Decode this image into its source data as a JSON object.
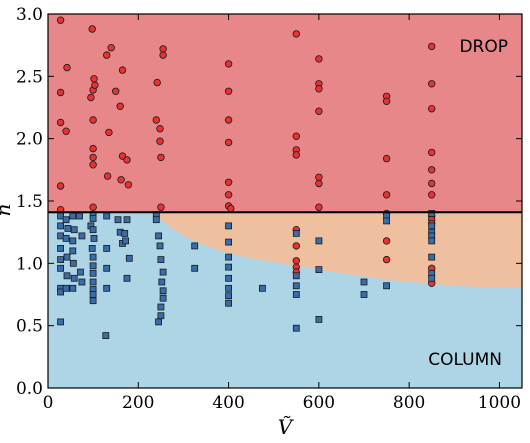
{
  "chart_data": {
    "type": "scatter",
    "title": "",
    "xlabel": "Ṽ",
    "ylabel": "n",
    "xlim": [
      0,
      1050
    ],
    "ylim": [
      0.0,
      3.0
    ],
    "xticks": [
      "0",
      "200",
      "400",
      "600",
      "800",
      "1000"
    ],
    "yticks": [
      "0.0",
      "0.5",
      "1.0",
      "1.5",
      "2.0",
      "2.5",
      "3.0"
    ],
    "xtick_values": [
      0,
      200,
      400,
      600,
      800,
      1000
    ],
    "ytick_values": [
      0.0,
      0.5,
      1.0,
      1.5,
      2.0,
      2.5,
      3.0
    ],
    "threshold_n": 1.41,
    "region_labels": {
      "drop": "DROP",
      "column": "COLUMN"
    },
    "colors": {
      "drop_region": "#e8878a",
      "column_region": "#aed5e6",
      "transition_region": "#eec0a0",
      "drop_marker": "#e83232",
      "column_marker": "#3a6da8",
      "threshold_line": "#000000"
    },
    "boundary_curve": {
      "x": [
        230,
        260,
        300,
        350,
        400,
        450,
        500,
        550,
        600,
        650,
        700,
        750,
        800,
        850,
        900,
        950,
        1000,
        1050
      ],
      "y": [
        1.41,
        1.32,
        1.22,
        1.14,
        1.08,
        1.04,
        1.01,
        0.98,
        0.95,
        0.92,
        0.895,
        0.87,
        0.85,
        0.835,
        0.82,
        0.81,
        0.805,
        0.8
      ]
    },
    "series": [
      {
        "marker": "circle",
        "points": [
          [
            28,
            2.95
          ],
          [
            28,
            2.37
          ],
          [
            28,
            2.13
          ],
          [
            28,
            1.62
          ],
          [
            28,
            1.43
          ],
          [
            40,
            2.06
          ],
          [
            42,
            2.57
          ],
          [
            98,
            2.88
          ],
          [
            100,
            2.39
          ],
          [
            95,
            2.33
          ],
          [
            104,
            2.43
          ],
          [
            102,
            2.48
          ],
          [
            100,
            2.15
          ],
          [
            100,
            1.92
          ],
          [
            100,
            1.85
          ],
          [
            100,
            1.79
          ],
          [
            100,
            1.45
          ],
          [
            130,
            2.67
          ],
          [
            140,
            2.73
          ],
          [
            135,
            2.05
          ],
          [
            132,
            1.7
          ],
          [
            150,
            2.38
          ],
          [
            165,
            2.55
          ],
          [
            160,
            2.26
          ],
          [
            165,
            1.86
          ],
          [
            175,
            1.83
          ],
          [
            162,
            1.67
          ],
          [
            178,
            1.63
          ],
          [
            242,
            2.45
          ],
          [
            240,
            2.15
          ],
          [
            248,
            2.08
          ],
          [
            248,
            1.98
          ],
          [
            250,
            1.85
          ],
          [
            250,
            1.45
          ],
          [
            255,
            2.72
          ],
          [
            255,
            2.67
          ],
          [
            400,
            2.6
          ],
          [
            400,
            2.38
          ],
          [
            400,
            2.15
          ],
          [
            400,
            1.97
          ],
          [
            400,
            1.65
          ],
          [
            400,
            1.55
          ],
          [
            400,
            1.46
          ],
          [
            405,
            1.44
          ],
          [
            550,
            2.84
          ],
          [
            550,
            2.02
          ],
          [
            550,
            1.91
          ],
          [
            550,
            1.87
          ],
          [
            550,
            1.27
          ],
          [
            550,
            1.14
          ],
          [
            550,
            1.02
          ],
          [
            550,
            0.97
          ],
          [
            550,
            0.93
          ],
          [
            600,
            2.64
          ],
          [
            600,
            2.44
          ],
          [
            600,
            2.4
          ],
          [
            600,
            2.22
          ],
          [
            600,
            1.69
          ],
          [
            600,
            1.64
          ],
          [
            600,
            1.45
          ],
          [
            750,
            2.34
          ],
          [
            750,
            2.3
          ],
          [
            750,
            1.84
          ],
          [
            750,
            1.55
          ],
          [
            750,
            1.4
          ],
          [
            750,
            1.18
          ],
          [
            750,
            1.03
          ],
          [
            850,
            2.74
          ],
          [
            850,
            2.44
          ],
          [
            850,
            2.24
          ],
          [
            850,
            1.89
          ],
          [
            850,
            1.75
          ],
          [
            850,
            1.64
          ],
          [
            850,
            1.55
          ],
          [
            850,
            1.38
          ],
          [
            850,
            1.35
          ],
          [
            850,
            1.32
          ],
          [
            850,
            0.96
          ],
          [
            850,
            0.84
          ]
        ]
      },
      {
        "marker": "square",
        "points": [
          [
            28,
            1.38
          ],
          [
            28,
            1.3
          ],
          [
            28,
            1.22
          ],
          [
            28,
            1.12
          ],
          [
            28,
            1.03
          ],
          [
            28,
            0.96
          ],
          [
            28,
            0.8
          ],
          [
            28,
            0.77
          ],
          [
            28,
            0.53
          ],
          [
            40,
            1.35
          ],
          [
            44,
            1.28
          ],
          [
            40,
            1.2
          ],
          [
            42,
            1.05
          ],
          [
            42,
            0.9
          ],
          [
            40,
            0.8
          ],
          [
            55,
            1.38
          ],
          [
            58,
            1.27
          ],
          [
            55,
            1.18
          ],
          [
            55,
            1.1
          ],
          [
            56,
            1.0
          ],
          [
            58,
            0.88
          ],
          [
            55,
            0.8
          ],
          [
            70,
            1.38
          ],
          [
            75,
            1.22
          ],
          [
            72,
            0.93
          ],
          [
            75,
            0.85
          ],
          [
            100,
            1.39
          ],
          [
            100,
            1.36
          ],
          [
            95,
            1.3
          ],
          [
            100,
            1.27
          ],
          [
            102,
            1.2
          ],
          [
            98,
            1.12
          ],
          [
            100,
            1.05
          ],
          [
            100,
            0.98
          ],
          [
            100,
            0.92
          ],
          [
            100,
            0.85
          ],
          [
            100,
            0.79
          ],
          [
            100,
            0.75
          ],
          [
            100,
            0.7
          ],
          [
            130,
            1.38
          ],
          [
            130,
            1.12
          ],
          [
            130,
            0.96
          ],
          [
            130,
            0.8
          ],
          [
            128,
            0.42
          ],
          [
            155,
            1.35
          ],
          [
            160,
            1.25
          ],
          [
            165,
            1.16
          ],
          [
            170,
            1.24
          ],
          [
            172,
            1.18
          ],
          [
            175,
            1.35
          ],
          [
            180,
            1.04
          ],
          [
            175,
            0.88
          ],
          [
            240,
            1.39
          ],
          [
            240,
            1.35
          ],
          [
            245,
            1.22
          ],
          [
            248,
            1.14
          ],
          [
            250,
            1.03
          ],
          [
            255,
            0.93
          ],
          [
            252,
            0.85
          ],
          [
            255,
            0.78
          ],
          [
            255,
            0.72
          ],
          [
            250,
            0.65
          ],
          [
            250,
            0.58
          ],
          [
            245,
            0.53
          ],
          [
            325,
            1.14
          ],
          [
            325,
            0.96
          ],
          [
            400,
            1.3
          ],
          [
            400,
            1.17
          ],
          [
            400,
            1.05
          ],
          [
            400,
            0.97
          ],
          [
            400,
            0.88
          ],
          [
            400,
            0.8
          ],
          [
            400,
            0.74
          ],
          [
            400,
            0.68
          ],
          [
            475,
            0.8
          ],
          [
            550,
            1.24
          ],
          [
            550,
            0.9
          ],
          [
            550,
            0.82
          ],
          [
            550,
            0.75
          ],
          [
            550,
            0.48
          ],
          [
            600,
            1.18
          ],
          [
            600,
            0.95
          ],
          [
            600,
            0.55
          ],
          [
            700,
            0.85
          ],
          [
            700,
            0.75
          ],
          [
            750,
            1.38
          ],
          [
            750,
            1.34
          ],
          [
            750,
            0.82
          ],
          [
            850,
            1.4
          ],
          [
            850,
            1.3
          ],
          [
            850,
            1.25
          ],
          [
            850,
            1.22
          ],
          [
            850,
            1.18
          ],
          [
            850,
            1.05
          ],
          [
            850,
            0.92
          ],
          [
            850,
            0.88
          ]
        ]
      }
    ]
  }
}
